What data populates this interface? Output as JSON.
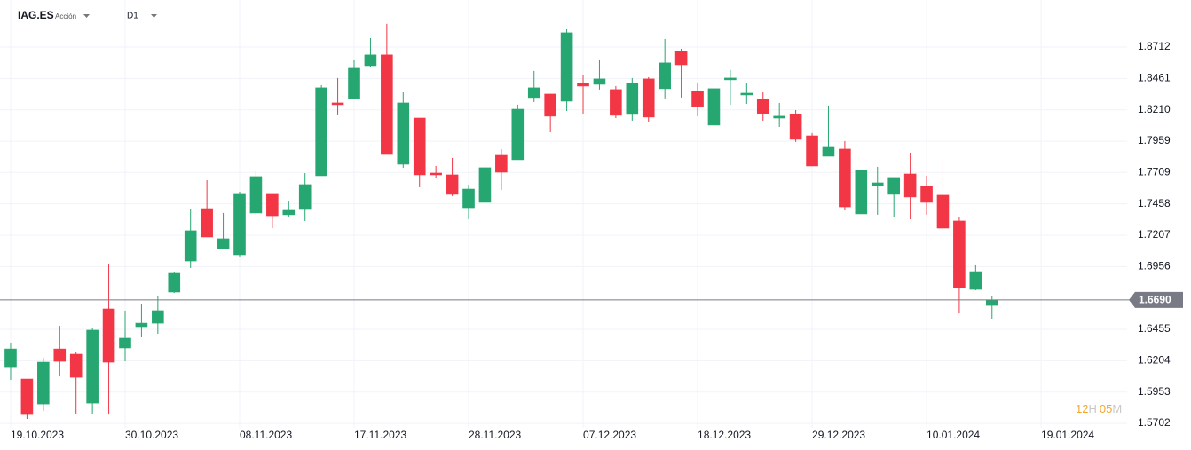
{
  "chart_data": {
    "type": "candlestick",
    "symbol": "IAG.ES",
    "asset_type": "Acción",
    "timeframe": "D1",
    "up_color": "#26a671",
    "down_color": "#f23645",
    "x": [
      0,
      1,
      2,
      3,
      4,
      5,
      6,
      7,
      8,
      9,
      10,
      11,
      12,
      13,
      14,
      15,
      16,
      17,
      18,
      19,
      20,
      21,
      22,
      23,
      24,
      25,
      26,
      27,
      28,
      29,
      30,
      31,
      32,
      33,
      34,
      35,
      36,
      37,
      38,
      39,
      40,
      41,
      42,
      43,
      44,
      45,
      46,
      47,
      48,
      49,
      50,
      51,
      52,
      53,
      54,
      55,
      56,
      57,
      58,
      59,
      60
    ],
    "open": [
      1.6149,
      1.6057,
      1.5858,
      1.6298,
      1.6256,
      1.5865,
      1.6618,
      1.6306,
      1.6476,
      1.6504,
      1.6753,
      1.7001,
      1.742,
      1.7101,
      1.7051,
      1.7385,
      1.7534,
      1.7371,
      1.7413,
      1.7683,
      1.8265,
      1.8301,
      1.8563,
      1.8649,
      1.7775,
      1.8144,
      1.7704,
      1.769,
      1.7427,
      1.747,
      1.7846,
      1.7811,
      1.8308,
      1.8336,
      1.8279,
      1.8421,
      1.8414,
      1.8372,
      1.8173,
      1.8457,
      1.8379,
      1.8677,
      1.8357,
      1.8088,
      1.845,
      1.8329,
      1.8294,
      1.8144,
      1.8173,
      1.8002,
      1.7839,
      1.7896,
      1.7378,
      1.7605,
      1.7534,
      1.7697,
      1.7598,
      1.7527,
      1.7321,
      1.6774,
      1.6646
    ],
    "high": [
      1.6348,
      1.6057,
      1.6227,
      1.6483,
      1.627,
      1.6462,
      1.6973,
      1.6604,
      1.6661,
      1.6724,
      1.6916,
      1.742,
      1.7647,
      1.7385,
      1.7555,
      1.7718,
      1.7534,
      1.7477,
      1.7704,
      1.8407,
      1.8464,
      1.8606,
      1.8783,
      1.8897,
      1.835,
      1.8144,
      1.7761,
      1.7825,
      1.7612,
      1.7747,
      1.7896,
      1.8251,
      1.8521,
      1.8336,
      1.8854,
      1.8485,
      1.8606,
      1.84,
      1.8464,
      1.8471,
      1.8776,
      1.8698,
      1.8421,
      1.8379,
      1.8528,
      1.8428,
      1.835,
      1.8265,
      1.8208,
      1.8024,
      1.8244,
      1.796,
      1.7726,
      1.7754,
      1.7669,
      1.7868,
      1.7683,
      1.7811,
      1.7349,
      1.6966,
      1.6724
    ],
    "low": [
      1.605,
      1.5738,
      1.5801,
      1.6078,
      1.578,
      1.578,
      1.5773,
      1.6199,
      1.6391,
      1.6419,
      1.6746,
      1.6945,
      1.7193,
      1.7101,
      1.7037,
      1.7371,
      1.7264,
      1.7349,
      1.7321,
      1.7683,
      1.8166,
      1.8301,
      1.8549,
      1.7853,
      1.7747,
      1.7591,
      1.7662,
      1.752,
      1.7335,
      1.747,
      1.7569,
      1.7811,
      1.8272,
      1.8031,
      1.8201,
      1.818,
      1.8372,
      1.8144,
      1.8123,
      1.8116,
      1.8301,
      1.8308,
      1.8159,
      1.8088,
      1.8251,
      1.8258,
      1.8123,
      1.8073,
      1.7953,
      1.7761,
      1.7839,
      1.7406,
      1.7378,
      1.7371,
      1.7349,
      1.7335,
      1.7371,
      1.7264,
      1.6582,
      1.6767,
      1.654
    ],
    "close": [
      1.6298,
      1.5773,
      1.6192,
      1.6199,
      1.6071,
      1.6448,
      1.6192,
      1.6384,
      1.6504,
      1.6604,
      1.6902,
      1.7243,
      1.7193,
      1.7179,
      1.7534,
      1.7676,
      1.7363,
      1.7406,
      1.7612,
      1.8386,
      1.8251,
      1.8542,
      1.8649,
      1.7853,
      1.8265,
      1.769,
      1.769,
      1.7534,
      1.7576,
      1.7747,
      1.7711,
      1.8215,
      1.8386,
      1.8159,
      1.8826,
      1.84,
      1.8457,
      1.8166,
      1.8421,
      1.8152,
      1.8585,
      1.857,
      1.8237,
      1.8379,
      1.8464,
      1.8343,
      1.818,
      1.8159,
      1.7974,
      1.7761,
      1.791,
      1.7434,
      1.7726,
      1.7626,
      1.7669,
      1.7513,
      1.747,
      1.7264,
      1.6788,
      1.6916,
      1.669
    ],
    "xlim": [
      -0.65,
      68.26
    ],
    "xticks": [
      {
        "value": 0,
        "label": "19.10.2023"
      },
      {
        "value": 7,
        "label": "30.10.2023"
      },
      {
        "value": 14,
        "label": "08.11.2023"
      },
      {
        "value": 21,
        "label": "17.11.2023"
      },
      {
        "value": 28,
        "label": "28.11.2023"
      },
      {
        "value": 35,
        "label": "07.12.2023"
      },
      {
        "value": 42,
        "label": "18.12.2023"
      },
      {
        "value": 49,
        "label": "29.12.2023"
      },
      {
        "value": 56,
        "label": "10.01.2024"
      },
      {
        "value": 63,
        "label": "19.01.2024"
      }
    ],
    "ylim": [
      1.5667,
      1.9017
    ],
    "yticks": [
      1.5702,
      1.5953,
      1.6204,
      1.6455,
      1.6956,
      1.7207,
      1.7458,
      1.7709,
      1.7959,
      {
        "value": 1.821,
        "label": "1.8210"
      },
      1.8461,
      1.8712
    ],
    "grid": true,
    "last_price": {
      "value": 1.669,
      "label": "1.6690"
    },
    "last_price_color": "#787b86",
    "timer": {
      "hours": "12",
      "hours_unit": "H",
      "minutes": "05",
      "minutes_unit": "M"
    }
  }
}
